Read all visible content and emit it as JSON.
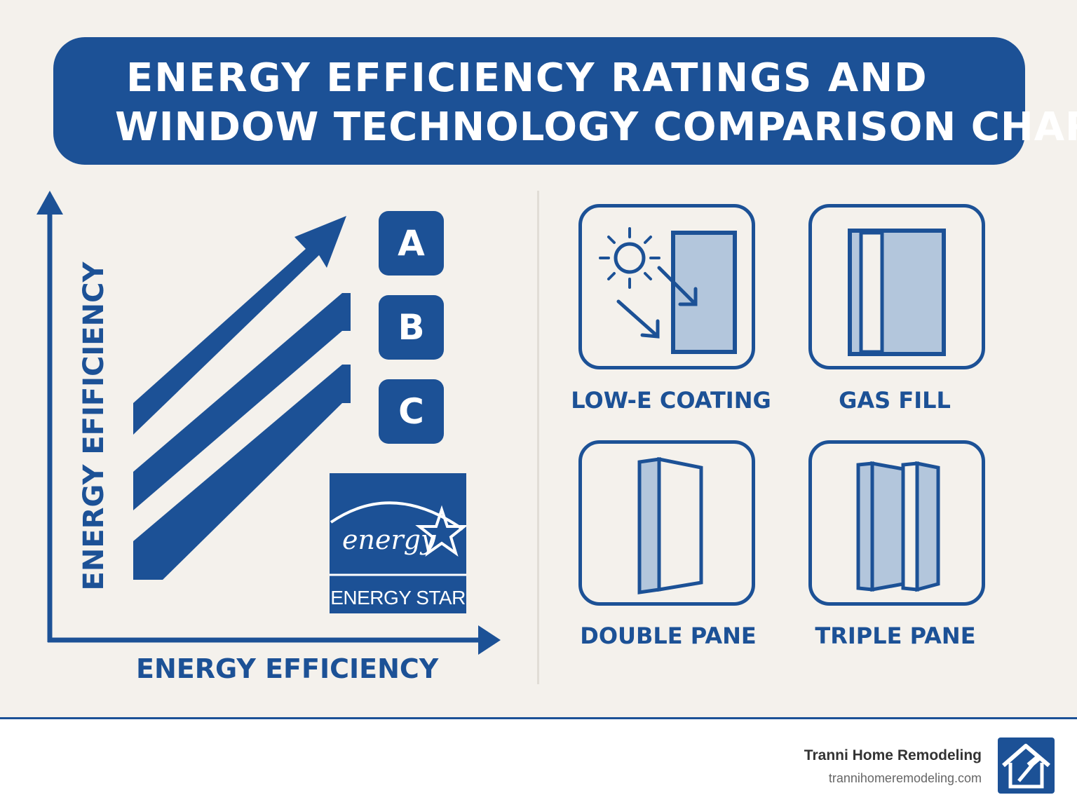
{
  "title": {
    "line1": "ENERGY EFFICIENCY RATINGS AND",
    "line2": "WINDOW TECHNOLOGY COMPARISON CHART"
  },
  "chart": {
    "y_axis_label": "ENERGY EFIFICIENCY",
    "x_axis_label": "ENERGY EFFICIENCY",
    "grades": [
      "A",
      "B",
      "C"
    ],
    "certification": {
      "script_text": "energy",
      "label": "ENERGY STAR"
    }
  },
  "technologies": [
    {
      "label": "LOW-E COATING",
      "icon": "low-e-coating-icon"
    },
    {
      "label": "GAS FILL",
      "icon": "gas-fill-icon"
    },
    {
      "label": "DOUBLE PANE",
      "icon": "double-pane-icon"
    },
    {
      "label": "TRIPLE PANE",
      "icon": "triple-pane-icon"
    }
  ],
  "footer": {
    "company": "Tranni Home Remodeling",
    "website": "trannihomeremodeling.com",
    "logo_icon": "house-hammer-icon"
  },
  "colors": {
    "primary": "#1c5196",
    "glass": "#b3c6dc",
    "background": "#f4f1ec"
  }
}
